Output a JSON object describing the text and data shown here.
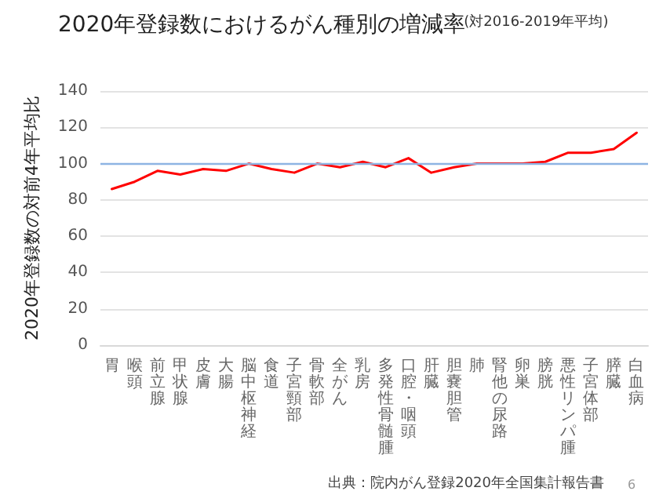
{
  "chart_data": {
    "type": "line",
    "title": "2020年登録数におけるがん種別の増減率",
    "subtitle": "(対2016-2019年平均)",
    "ylabel": "2020年登録数の対前4年平均比",
    "categories": [
      "胃",
      "喉頭",
      "前立腺",
      "甲状腺",
      "皮膚",
      "大腸",
      "脳中枢神経",
      "食道",
      "子宮頸部",
      "骨軟部",
      "全がん",
      "乳房",
      "多発性骨髄腫",
      "口腔・咽頭",
      "肝臓",
      "胆嚢胆管",
      "肺",
      "腎他の尿路",
      "卵巣",
      "膀胱",
      "悪性リンパ腫",
      "子宮体部",
      "膵臓",
      "白血病"
    ],
    "series": [
      {
        "color": "#ff0000",
        "values": [
          86,
          90,
          96,
          94,
          97,
          96,
          100,
          97,
          95,
          100,
          98,
          101,
          98,
          103,
          95,
          98,
          100,
          100,
          100,
          101,
          106,
          106,
          108,
          117
        ]
      }
    ],
    "ylim": [
      0,
      140
    ],
    "yticks": [
      0,
      20,
      40,
      60,
      80,
      100,
      120,
      140
    ],
    "grid": "y",
    "marker": "none",
    "line_style": "solid",
    "ref_lines": [
      {
        "axis": "y",
        "value": 100,
        "color": "#8eb4e3"
      }
    ],
    "annotations": [
      "出典：院内がん登録2020年全国集計報告書",
      "6"
    ]
  }
}
